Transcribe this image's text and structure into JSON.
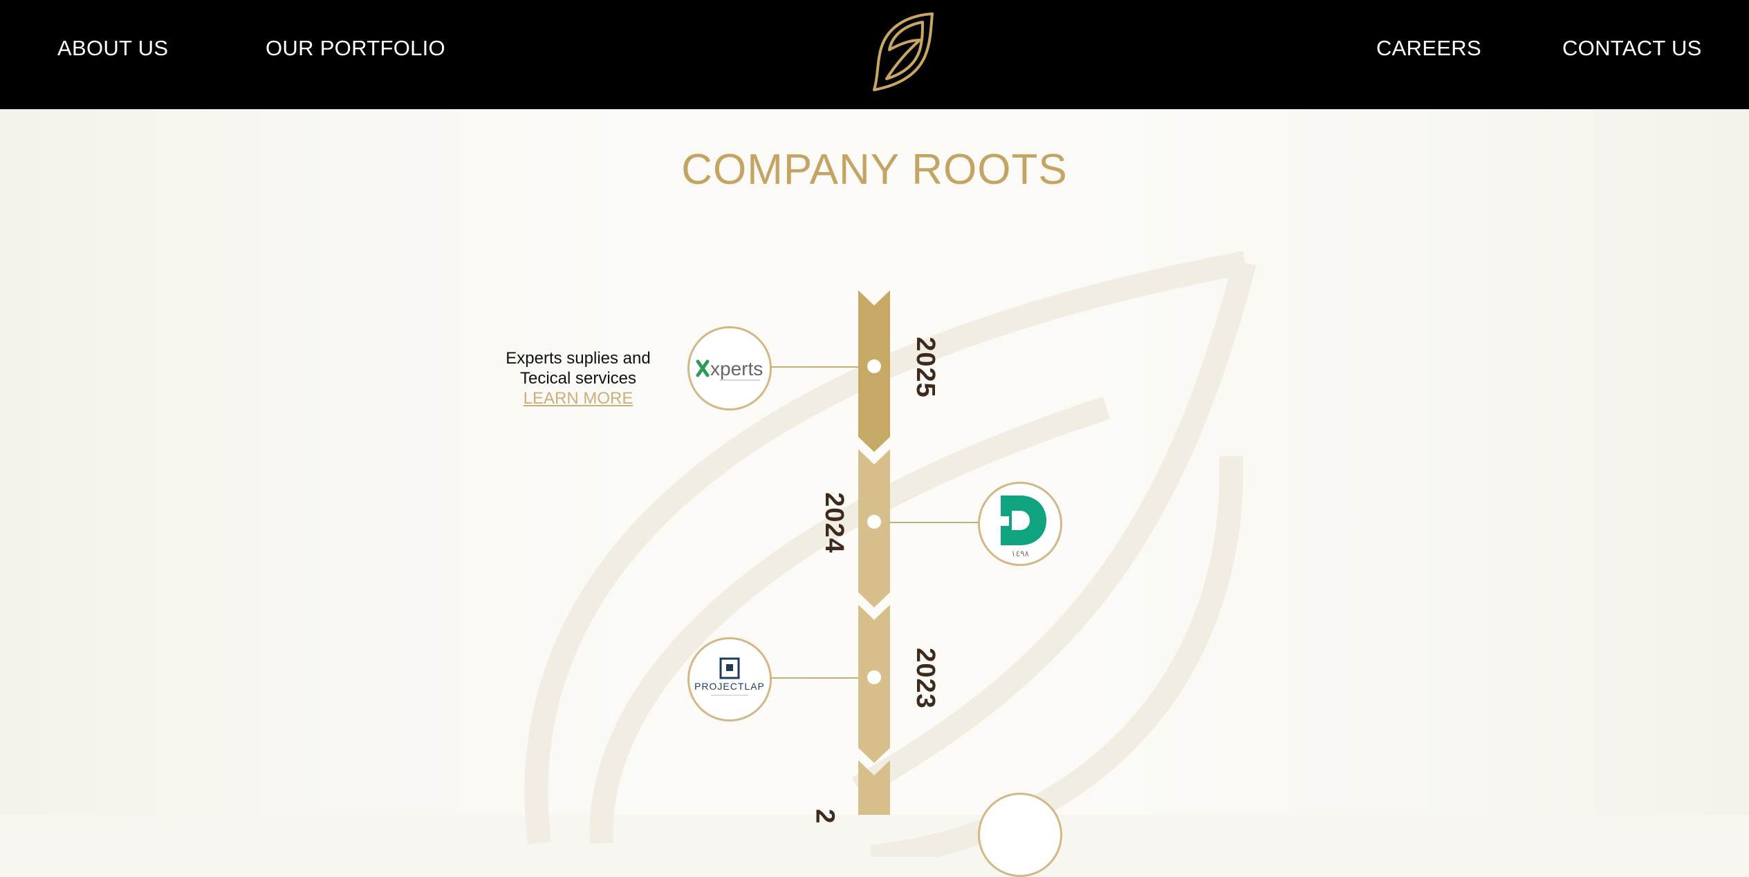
{
  "nav": {
    "about": "ABOUT US",
    "portfolio": "OUR PORTFOLIO",
    "careers": "CAREERS",
    "contact": "CONTACT US"
  },
  "page": {
    "title": "COMPANY ROOTS"
  },
  "timeline": {
    "entries": [
      {
        "year": "2025",
        "logo_text": "xperts",
        "description_line1": "Experts suplies and",
        "description_line2": "Tecical services",
        "link": "LEARN MORE"
      },
      {
        "year": "2024",
        "logo_text": "١٤٩٨"
      },
      {
        "year": "2023",
        "logo_text": "PROJECTLAP"
      },
      {
        "year": "2"
      }
    ]
  },
  "colors": {
    "gold": "#c4a463",
    "gold_light": "#d6bf8a",
    "header_bg": "#000000",
    "page_bg": "#f8f6f0",
    "year_text": "#3d2a1c"
  },
  "icons": {
    "brand": "leaf-logo-icon"
  }
}
